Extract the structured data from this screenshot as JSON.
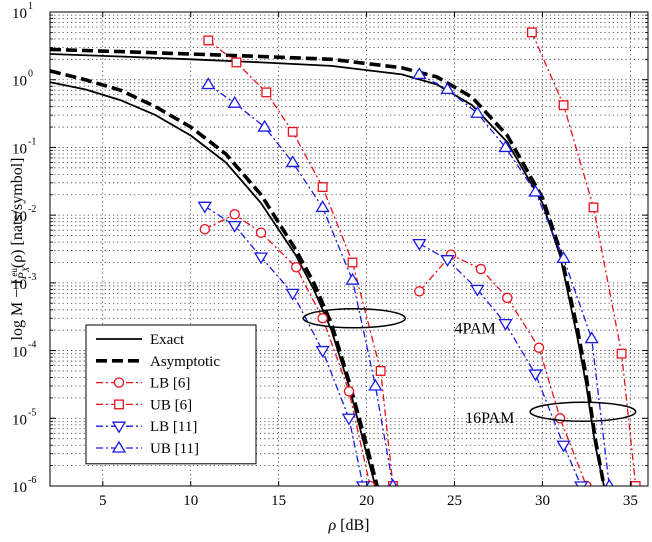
{
  "chart_data": {
    "type": "line",
    "title": "",
    "xlabel": "ρ [dB]",
    "ylabel": {
      "prefix": "log M − I",
      "subscript": "P",
      "sub_subscript": "X",
      "superscript": "eu",
      "suffix": "(ρ) [nats/symbol]"
    },
    "xlim": [
      2,
      36
    ],
    "ylim": [
      1e-06,
      10
    ],
    "x_scale": "linear",
    "y_scale": "log",
    "grid": true,
    "x_ticks": [
      5,
      10,
      15,
      20,
      25,
      30,
      35
    ],
    "x_tick_labels": [
      "5",
      "10",
      "15",
      "20",
      "25",
      "30",
      "35"
    ],
    "y_ticks": [
      1e-06,
      1e-05,
      0.0001,
      0.001,
      0.01,
      0.1,
      1,
      10
    ],
    "y_tick_labels": [
      {
        "base": "10",
        "exp": "-6"
      },
      {
        "base": "10",
        "exp": "-5"
      },
      {
        "base": "10",
        "exp": "-4"
      },
      {
        "base": "10",
        "exp": "-3"
      },
      {
        "base": "10",
        "exp": "-2"
      },
      {
        "base": "10",
        "exp": "-1"
      },
      {
        "base": "10",
        "exp": "0"
      },
      {
        "base": "10",
        "exp": "1"
      }
    ],
    "legend_placement": "bottom-left",
    "series": [
      {
        "name": "Exact",
        "color": "#000000",
        "style": "solid",
        "marker": "none",
        "x": [
          2,
          4,
          6,
          8,
          10,
          12,
          14,
          16,
          17,
          18,
          19,
          20,
          20.5,
          21.1
        ],
        "y": [
          0.92,
          0.72,
          0.5,
          0.3,
          0.15,
          0.06,
          0.015,
          0.0025,
          0.0008,
          0.0002,
          3e-05,
          3e-06,
          1e-06,
          1e-07
        ]
      },
      {
        "name": "Asymptotic",
        "color": "#000000",
        "style": "dashed-thick",
        "marker": "none",
        "x": [
          2,
          4,
          6,
          8,
          10,
          12,
          14,
          16,
          17,
          18,
          19,
          20,
          20.6,
          21.2
        ],
        "y": [
          1.35,
          1.0,
          0.7,
          0.4,
          0.2,
          0.08,
          0.02,
          0.003,
          0.001,
          0.00025,
          3.5e-05,
          4e-06,
          1e-06,
          1e-07
        ]
      },
      {
        "name": "Exact",
        "color": "#000000",
        "style": "solid",
        "marker": "none",
        "x": [
          2,
          6,
          10,
          14,
          18,
          22,
          24,
          26,
          28,
          30,
          31,
          32,
          32.5,
          33,
          33.5
        ],
        "y": [
          2.4,
          2.2,
          2.0,
          1.8,
          1.6,
          1.2,
          0.85,
          0.42,
          0.12,
          0.015,
          0.0025,
          0.00015,
          3e-05,
          4e-06,
          1e-06
        ]
      },
      {
        "name": "Asymptotic",
        "color": "#000000",
        "style": "dashed-thick",
        "marker": "none",
        "x": [
          2,
          6,
          10,
          14,
          18,
          22,
          24,
          26,
          28,
          30,
          31,
          32,
          32.5,
          33,
          33.5
        ],
        "y": [
          2.8,
          2.6,
          2.4,
          2.2,
          2.0,
          1.5,
          1.1,
          0.55,
          0.15,
          0.018,
          0.003,
          0.0002,
          4e-05,
          5e-06,
          1e-06
        ]
      },
      {
        "name": "LB [6]",
        "color": "#e8111b",
        "style": "dashdot",
        "marker": "circle",
        "x": [
          10.8,
          12.5,
          14,
          16,
          17.5,
          19,
          20.2
        ],
        "y": [
          0.0062,
          0.0103,
          0.0055,
          0.0017,
          0.0003,
          2.5e-05,
          1e-06
        ]
      },
      {
        "name": "UB [6]",
        "color": "#e8111b",
        "style": "dashdot",
        "marker": "square",
        "x": [
          11,
          12.6,
          14.3,
          15.8,
          17.5,
          19.2,
          20.8,
          21.5
        ],
        "y": [
          3.8,
          1.8,
          0.65,
          0.17,
          0.026,
          0.002,
          5e-05,
          1e-06
        ]
      },
      {
        "name": "LB [11]",
        "color": "#1a1ae6",
        "style": "dashdot",
        "marker": "triangle-down",
        "x": [
          10.8,
          12.5,
          14,
          15.8,
          17.5,
          19,
          19.8
        ],
        "y": [
          0.0135,
          0.007,
          0.0024,
          0.0007,
          0.0001,
          1e-05,
          1e-06
        ]
      },
      {
        "name": "UB [11]",
        "color": "#1a1ae6",
        "style": "dashdot",
        "marker": "triangle-up",
        "x": [
          11,
          12.5,
          14.2,
          15.8,
          17.5,
          19.2,
          20.5,
          21.5
        ],
        "y": [
          0.85,
          0.45,
          0.2,
          0.06,
          0.013,
          0.0011,
          3e-05,
          1e-06
        ]
      },
      {
        "name": "LB [6]",
        "color": "#e8111b",
        "style": "dashdot",
        "marker": "circle",
        "x": [
          23,
          24.8,
          26.5,
          28,
          29.8,
          31,
          32.5
        ],
        "y": [
          0.00075,
          0.0026,
          0.0016,
          0.0006,
          0.00011,
          1e-05,
          1e-06
        ]
      },
      {
        "name": "UB [6]",
        "color": "#e8111b",
        "style": "dashdot",
        "marker": "square",
        "x": [
          29.4,
          31.2,
          32.9,
          34.5,
          35.3
        ],
        "y": [
          5.0,
          0.42,
          0.013,
          9e-05,
          1e-06
        ]
      },
      {
        "name": "LB [11]",
        "color": "#1a1ae6",
        "style": "dashdot",
        "marker": "triangle-down",
        "x": [
          23,
          24.6,
          26.3,
          27.9,
          29.6,
          31.2,
          32.2
        ],
        "y": [
          0.0038,
          0.0022,
          0.0008,
          0.00025,
          4.5e-05,
          4e-06,
          1e-06
        ]
      },
      {
        "name": "UB [11]",
        "color": "#1a1ae6",
        "style": "dashdot",
        "marker": "triangle-up",
        "x": [
          23,
          24.6,
          26.3,
          27.9,
          29.6,
          31.2,
          32.8,
          33.8
        ],
        "y": [
          1.2,
          0.72,
          0.32,
          0.1,
          0.022,
          0.0023,
          0.00015,
          1e-06
        ]
      }
    ],
    "annotations": [
      {
        "text": "4PAM",
        "x": 25,
        "y": 0.00022,
        "ellipse": {
          "cx": 19.3,
          "cy": 0.0003,
          "rx_db": 2.9,
          "ry_decades": 0.14
        }
      },
      {
        "text": "16PAM",
        "x": 25.6,
        "y": 1.05e-05,
        "ellipse": {
          "cx": 32.3,
          "cy": 1.25e-05,
          "rx_db": 3.0,
          "ry_decades": 0.14
        }
      }
    ],
    "legend": [
      {
        "label": "Exact",
        "color": "#000000",
        "style": "solid",
        "marker": "none"
      },
      {
        "label": "Asymptotic",
        "color": "#000000",
        "style": "dashed-thick",
        "marker": "none"
      },
      {
        "label": "LB [6]",
        "color": "#e8111b",
        "style": "dashdot",
        "marker": "circle"
      },
      {
        "label": "UB [6]",
        "color": "#e8111b",
        "style": "dashdot",
        "marker": "square"
      },
      {
        "label": "LB [11]",
        "color": "#1a1ae6",
        "style": "dashdot",
        "marker": "triangle-down"
      },
      {
        "label": "UB [11]",
        "color": "#1a1ae6",
        "style": "dashdot",
        "marker": "triangle-up"
      }
    ]
  }
}
